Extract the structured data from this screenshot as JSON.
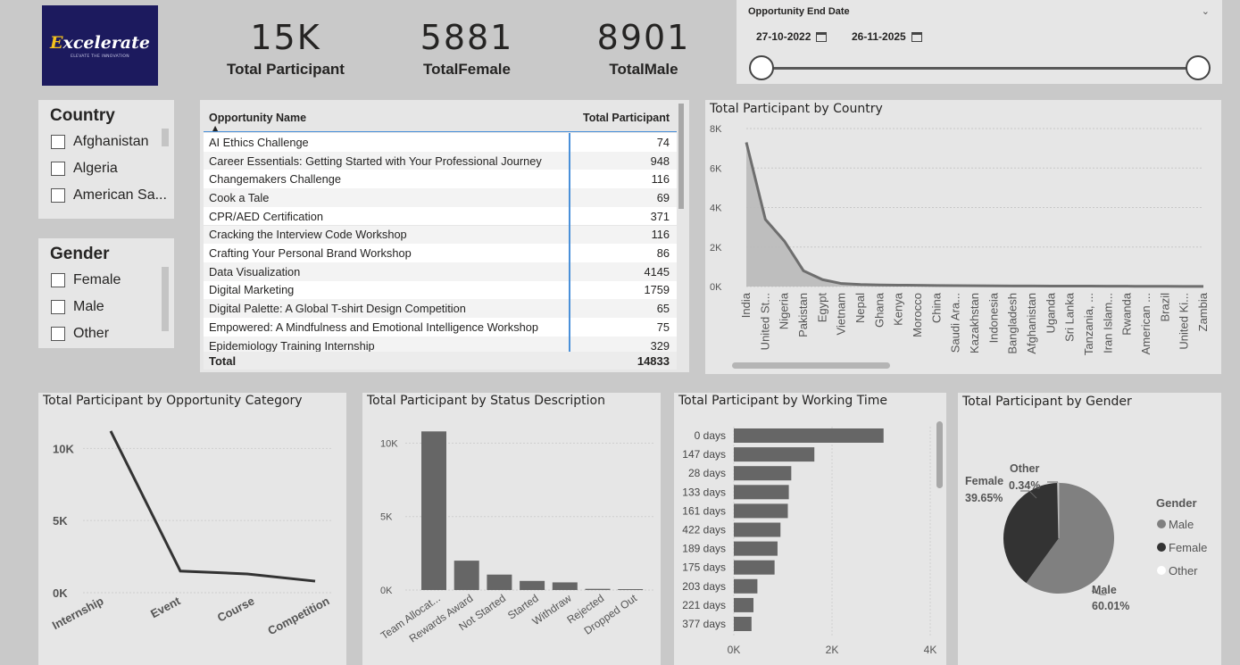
{
  "logo": {
    "text_prefix": "E",
    "text_rest": "xcelerate",
    "tagline": "ELEVATE THE INNOVATION"
  },
  "kpis": [
    {
      "value": "15K",
      "label": "Total Participant"
    },
    {
      "value": "5881",
      "label": "TotalFemale"
    },
    {
      "value": "8901",
      "label": "TotalMale"
    }
  ],
  "date_slicer": {
    "title": "Opportunity End Date",
    "start": "27-10-2022",
    "end": "26-11-2025",
    "range_fraction": [
      0,
      1
    ]
  },
  "country_slicer": {
    "title": "Country",
    "items": [
      "Afghanistan",
      "Algeria",
      "American Sa..."
    ]
  },
  "gender_slicer": {
    "title": "Gender",
    "items": [
      "Female",
      "Male",
      "Other"
    ]
  },
  "table": {
    "col1": "Opportunity Name",
    "col2": "Total Participant",
    "rows": [
      [
        "AI Ethics Challenge",
        "74"
      ],
      [
        "Career Essentials: Getting Started with Your Professional Journey",
        "948"
      ],
      [
        "Changemakers Challenge",
        "116"
      ],
      [
        "Cook a Tale",
        "69"
      ],
      [
        "CPR/AED Certification",
        "371"
      ],
      [
        "Cracking the Interview Code Workshop",
        "116"
      ],
      [
        "Crafting Your Personal Brand Workshop",
        "86"
      ],
      [
        "Data Visualization",
        "4145"
      ],
      [
        "Digital Marketing",
        "1759"
      ],
      [
        "Digital Palette: A Global T-shirt Design Competition",
        "65"
      ],
      [
        "Empowered: A Mindfulness and Emotional Intelligence Workshop",
        "75"
      ],
      [
        "Epidemiology Training Internship",
        "329"
      ]
    ],
    "total_label": "Total",
    "total_value": "14833"
  },
  "colors": {
    "dark": "#333333",
    "mid": "#666666",
    "light_fill": "#b9b9b9",
    "pie_male": "#808080",
    "pie_female": "#333333",
    "pie_other": "#f2f2f2"
  },
  "chart_data": [
    {
      "id": "country",
      "type": "area",
      "title": "Total Participant by Country",
      "categories": [
        "India",
        "United St...",
        "Nigeria",
        "Pakistan",
        "Egypt",
        "Vietnam",
        "Nepal",
        "Ghana",
        "Kenya",
        "Morocco",
        "China",
        "Saudi Ara...",
        "Kazakhstan",
        "Indonesia",
        "Bangladesh",
        "Afghanistan",
        "Uganda",
        "Sri Lanka",
        "Tanzania, ...",
        "Iran Islam...",
        "Rwanda",
        "American ...",
        "Brazil",
        "United Ki...",
        "Zambia"
      ],
      "values": [
        7300,
        3400,
        2300,
        800,
        350,
        150,
        100,
        80,
        70,
        60,
        50,
        45,
        40,
        35,
        30,
        28,
        25,
        22,
        20,
        18,
        15,
        12,
        10,
        8,
        5
      ],
      "ylim": [
        0,
        8000
      ],
      "yticks": [
        "0K",
        "2K",
        "4K",
        "6K",
        "8K"
      ]
    },
    {
      "id": "category",
      "type": "line",
      "title": "Total Participant by Opportunity Category",
      "categories": [
        "Internship",
        "Event",
        "Course",
        "Competition"
      ],
      "values": [
        11200,
        1500,
        1300,
        800
      ],
      "ylim": [
        0,
        12000
      ],
      "yticks": [
        "0K",
        "5K",
        "10K"
      ]
    },
    {
      "id": "status",
      "type": "bar",
      "title": "Total Participant by Status Description",
      "categories": [
        "Team Allocat...",
        "Rewards Award",
        "Not Started",
        "Started",
        "Withdraw",
        "Rejected",
        "Dropped Out"
      ],
      "values": [
        10800,
        2000,
        1050,
        620,
        520,
        80,
        60
      ],
      "ylim": [
        0,
        11000
      ],
      "yticks": [
        "0K",
        "5K",
        "10K"
      ]
    },
    {
      "id": "working_time",
      "type": "bar",
      "orientation": "horizontal",
      "title": "Total Participant by Working Time",
      "categories": [
        "0 days",
        "147 days",
        "28 days",
        "133 days",
        "161 days",
        "422 days",
        "189 days",
        "175 days",
        "203 days",
        "221 days",
        "377 days"
      ],
      "values": [
        3050,
        1640,
        1170,
        1120,
        1100,
        950,
        890,
        830,
        480,
        400,
        360
      ],
      "xlim": [
        0,
        4000
      ],
      "xticks": [
        "0K",
        "2K",
        "4K"
      ]
    },
    {
      "id": "gender",
      "type": "pie",
      "title": "Total Participant by Gender",
      "legend_title": "Gender",
      "labels": [
        "Male",
        "Female",
        "Other"
      ],
      "values": [
        60.01,
        39.65,
        0.34
      ],
      "pct_labels": [
        "60.01%",
        "39.65%",
        "0.34%"
      ]
    }
  ]
}
